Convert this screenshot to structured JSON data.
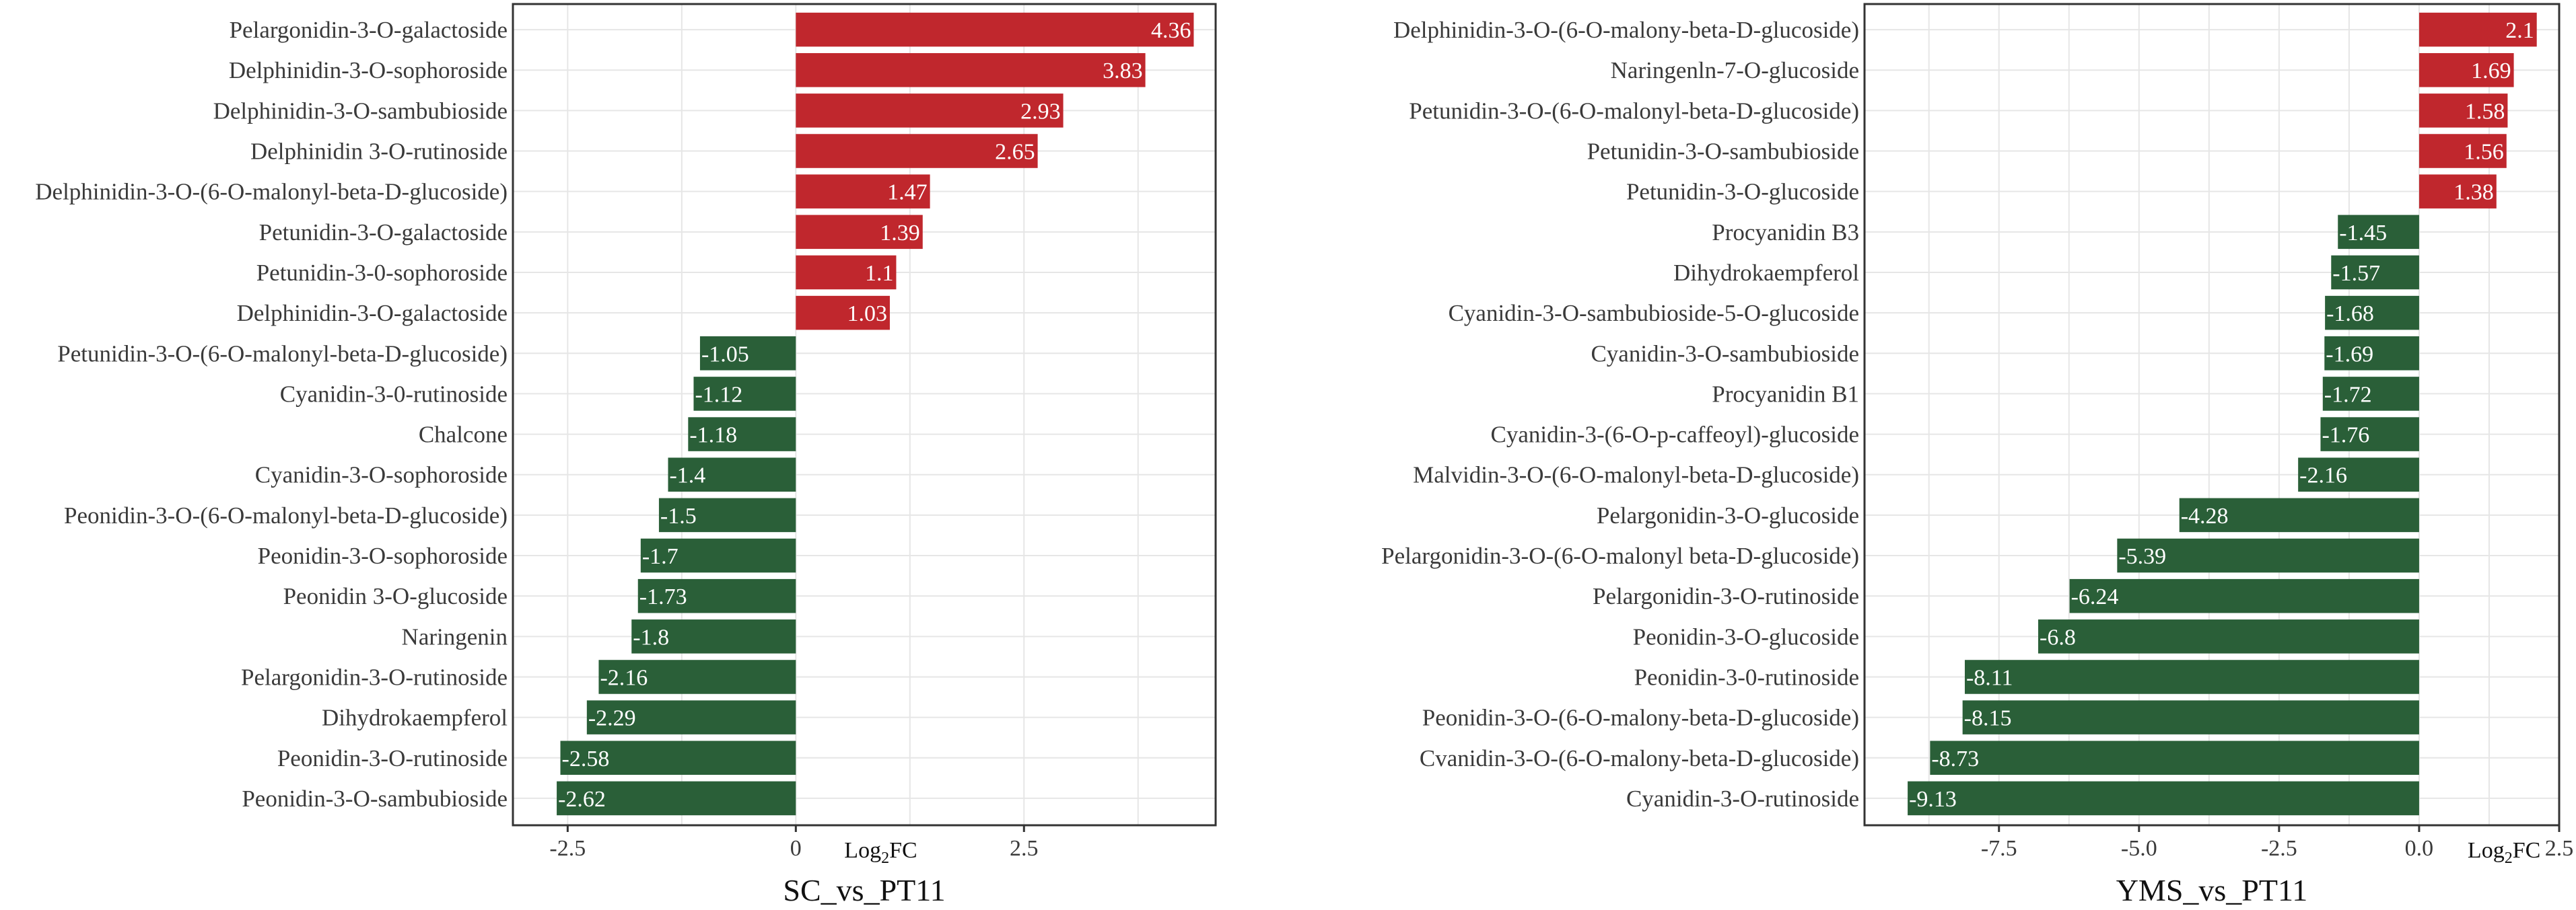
{
  "colors": {
    "positive": "#c0272d",
    "negative": "#2a5f38",
    "grid": "#e6e6e6",
    "frame": "#333333"
  },
  "chart_data": [
    {
      "type": "bar",
      "orientation": "horizontal",
      "title": "SC_vs_PT11",
      "xlabel_main": "Log",
      "xlabel_sub": "2",
      "xlabel_end": "FC",
      "xlim": [
        -3.1,
        4.6
      ],
      "xticks": [
        -2.5,
        0,
        2.5
      ],
      "xtick_labels": [
        "-2.5",
        "0",
        "2.5"
      ],
      "grid": true,
      "categories": [
        "Pelargonidin-3-O-galactoside",
        "Delphinidin-3-O-sophoroside",
        "Delphinidin-3-O-sambubioside",
        "Delphinidin 3-O-rutinoside",
        "Delphinidin-3-O-(6-O-malonyl-beta-D-glucoside)",
        "Petunidin-3-O-galactoside",
        "Petunidin-3-0-sophoroside",
        "Delphinidin-3-O-galactoside",
        "Petunidin-3-O-(6-O-malonyl-beta-D-glucoside)",
        "Cyanidin-3-0-rutinoside",
        "Chalcone",
        "Cyanidin-3-O-sophoroside",
        "Peonidin-3-O-(6-O-malonyl-beta-D-glucoside)",
        "Peonidin-3-O-sophoroside",
        "Peonidin 3-O-glucoside",
        "Naringenin",
        "Pelargonidin-3-O-rutinoside",
        "Dihydrokaempferol",
        "Peonidin-3-O-rutinoside",
        "Peonidin-3-O-sambubioside"
      ],
      "values": [
        4.36,
        3.83,
        2.93,
        2.65,
        1.47,
        1.39,
        1.1,
        1.03,
        -1.05,
        -1.12,
        -1.18,
        -1.4,
        -1.5,
        -1.7,
        -1.73,
        -1.8,
        -2.16,
        -2.29,
        -2.58,
        -2.62
      ],
      "value_labels": [
        "4.36",
        "3.83",
        "2.93",
        "2.65",
        "1.47",
        "1.39",
        "1.1",
        "1.03",
        "-1.05",
        "-1.12",
        "-1.18",
        "-1.4",
        "-1.5",
        "-1.7",
        "-1.73",
        "-1.8",
        "-2.16",
        "-2.29",
        "-2.58",
        "-2.62"
      ]
    },
    {
      "type": "bar",
      "orientation": "horizontal",
      "title": "YMS_vs_PT11",
      "xlabel_main": "Log",
      "xlabel_sub": "2",
      "xlabel_end": "FC",
      "xlim": [
        -9.9,
        2.5
      ],
      "xticks": [
        -7.5,
        -5.0,
        -2.5,
        0.0,
        2.5
      ],
      "xtick_labels": [
        "-7.5",
        "-5.0",
        "-2.5",
        "0.0",
        "2.5"
      ],
      "grid": true,
      "categories": [
        "Delphinidin-3-O-(6-O-malony-beta-D-glucoside)",
        "Naringenln-7-O-glucoside",
        "Petunidin-3-O-(6-O-malonyl-beta-D-glucoside)",
        "Petunidin-3-O-sambubioside",
        "Petunidin-3-O-glucoside",
        "Procyanidin B3",
        "Dihydrokaempferol",
        "Cyanidin-3-O-sambubioside-5-O-glucoside",
        "Cyanidin-3-O-sambubioside",
        "Procyanidin B1",
        "Cyanidin-3-(6-O-p-caffeoyl)-glucoside",
        "Malvidin-3-O-(6-O-malonyl-beta-D-glucoside)",
        "Pelargonidin-3-O-glucoside",
        "Pelargonidin-3-O-(6-O-malonyl beta-D-glucoside)",
        "Pelargonidin-3-O-rutinoside",
        "Peonidin-3-O-glucoside",
        "Peonidin-3-0-rutinoside",
        "Peonidin-3-O-(6-O-malony-beta-D-glucoside)",
        "Cvanidin-3-O-(6-O-malony-beta-D-glucoside)",
        "Cyanidin-3-O-rutinoside"
      ],
      "values": [
        2.1,
        1.69,
        1.58,
        1.56,
        1.38,
        -1.45,
        -1.57,
        -1.68,
        -1.69,
        -1.72,
        -1.76,
        -2.16,
        -4.28,
        -5.39,
        -6.24,
        -6.8,
        -8.11,
        -8.15,
        -8.73,
        -9.13
      ],
      "value_labels": [
        "2.1",
        "1.69",
        "1.58",
        "1.56",
        "1.38",
        "-1.45",
        "-1.57",
        "-1.68",
        "-1.69",
        "-1.72",
        "-1.76",
        "-2.16",
        "-4.28",
        "-5.39",
        "-6.24",
        "-6.8",
        "-8.11",
        "-8.15",
        "-8.73",
        "-9.13"
      ]
    }
  ]
}
